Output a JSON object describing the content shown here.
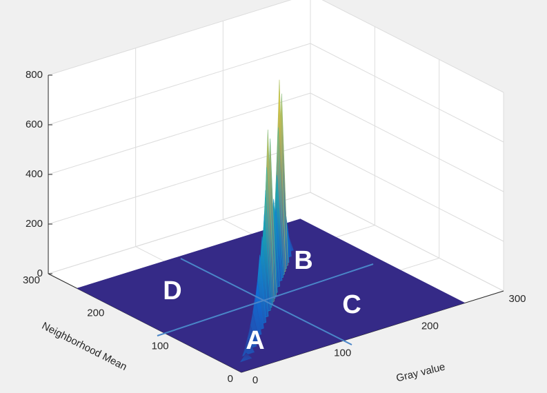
{
  "chart_data": {
    "type": "surface3d",
    "xlabel": "Gray value",
    "ylabel": "Neighborhood Mean",
    "xlim": [
      0,
      300
    ],
    "ylim": [
      0,
      300
    ],
    "zlim": [
      0,
      800
    ],
    "xticks": [
      0,
      100,
      200,
      300
    ],
    "yticks": [
      0,
      100,
      200,
      300
    ],
    "zticks": [
      0,
      200,
      400,
      600,
      800
    ],
    "grid": true,
    "floor_color": "#352a87",
    "x": [
      20,
      30,
      40,
      50,
      60,
      70,
      80,
      90,
      100,
      105,
      110,
      115,
      120,
      125,
      130,
      140,
      150,
      155,
      160,
      165,
      170,
      175,
      180,
      190,
      200
    ],
    "values": [
      30,
      60,
      90,
      120,
      160,
      200,
      280,
      330,
      400,
      480,
      560,
      700,
      520,
      640,
      430,
      360,
      300,
      420,
      600,
      780,
      560,
      700,
      400,
      200,
      80
    ],
    "regions": [
      "A",
      "B",
      "C",
      "D"
    ]
  }
}
